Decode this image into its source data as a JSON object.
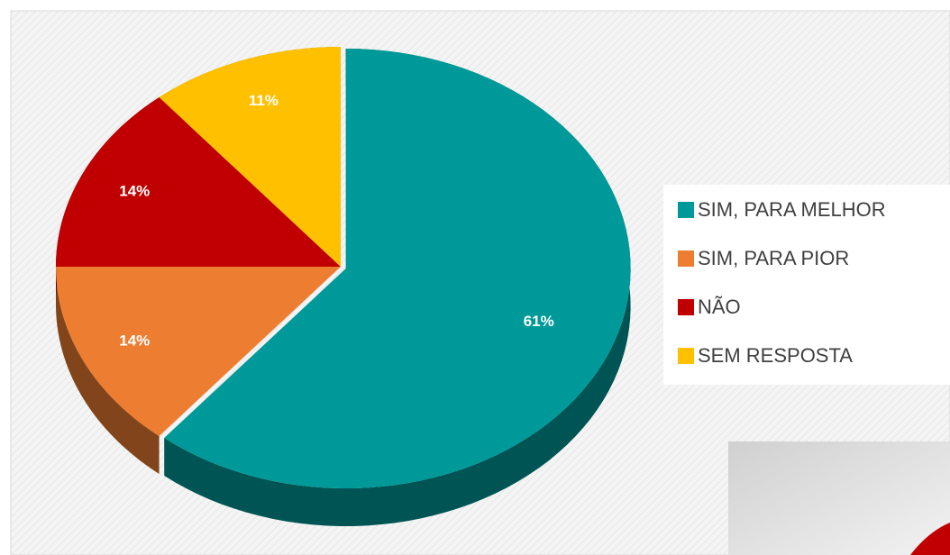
{
  "chart_data": {
    "type": "pie",
    "categories": [
      "SIM, PARA MELHOR",
      "SIM, PARA PIOR",
      "NÃO",
      "SEM RESPOSTA"
    ],
    "values": [
      61,
      14,
      14,
      11
    ],
    "value_labels": [
      "61%",
      "14%",
      "14%",
      "11%"
    ],
    "colors": [
      "#009999",
      "#ED7D31",
      "#C00000",
      "#FFC000"
    ],
    "legend": "right"
  }
}
